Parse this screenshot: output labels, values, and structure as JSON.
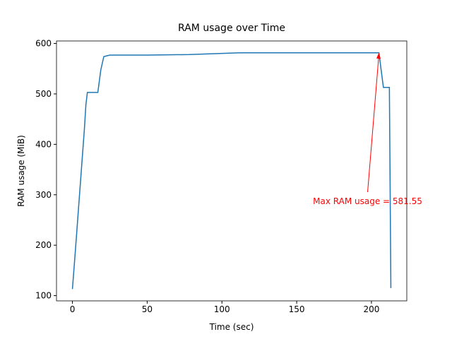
{
  "chart_data": {
    "type": "line",
    "title": "RAM usage over Time",
    "x_label": "Time (sec)",
    "y_label": "RAM usage (MiB)",
    "x": [
      0,
      2,
      4,
      6,
      8,
      9,
      10,
      17,
      19,
      21,
      25,
      50,
      78,
      112,
      150,
      205,
      208,
      212,
      213
    ],
    "values": [
      113,
      190,
      270,
      350,
      430,
      478,
      503,
      503,
      548,
      574,
      577,
      577,
      578,
      581.5,
      581.5,
      581.55,
      513,
      513,
      115
    ],
    "color": "#1f77b4",
    "xlim": [
      -10.65,
      223.65
    ],
    "ylim": [
      89.6,
      605.0
    ],
    "xticks": [
      0,
      50,
      100,
      150,
      200
    ],
    "yticks": [
      100,
      200,
      300,
      400,
      500,
      600
    ],
    "annotation": {
      "text": "Max RAM usage = 581.55",
      "color": "#ff0000"
    }
  }
}
